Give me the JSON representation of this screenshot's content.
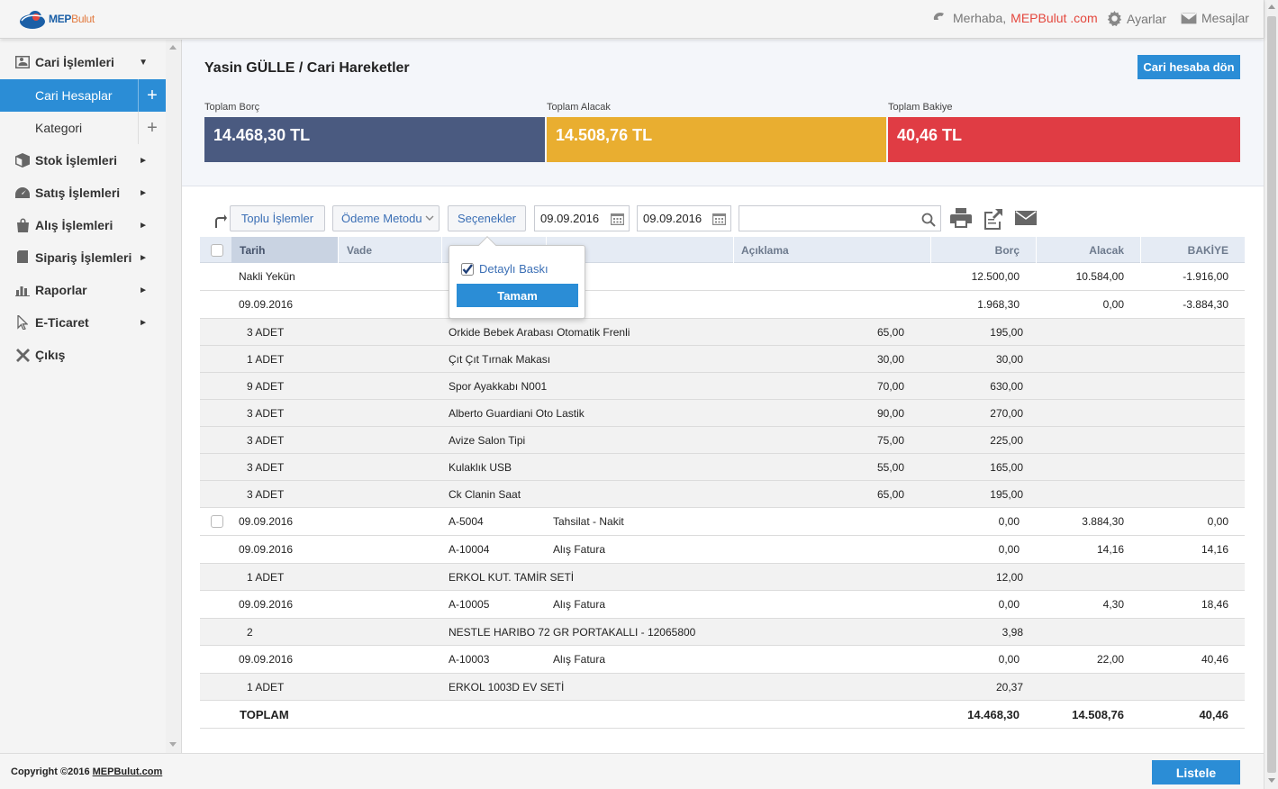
{
  "topbar": {
    "logo_text_a": "MEP",
    "logo_text_b": "Bulut",
    "greeting": "Merhaba,",
    "brand": "MEPBulut .com",
    "settings": "Ayarlar",
    "messages": "Mesajlar"
  },
  "sidebar": {
    "items": [
      {
        "label": "Cari İşlemleri",
        "icon": "id-card-icon"
      },
      {
        "label": "Cari Hesaplar"
      },
      {
        "label": "Kategori"
      },
      {
        "label": "Stok İşlemleri",
        "icon": "box-icon"
      },
      {
        "label": "Satış İşlemleri",
        "icon": "gauge-icon"
      },
      {
        "label": "Alış İşlemleri",
        "icon": "shopping-bag-icon"
      },
      {
        "label": "Sipariş İşlemleri",
        "icon": "clipboard-icon"
      },
      {
        "label": "Raporlar",
        "icon": "bar-chart-icon"
      },
      {
        "label": "E-Ticaret",
        "icon": "cursor-icon"
      },
      {
        "label": "Çıkış",
        "icon": "close-icon"
      }
    ]
  },
  "page": {
    "title": "Yasin GÜLLE / Cari Hareketler",
    "back_button": "Cari hesaba dön"
  },
  "summary": {
    "borc": {
      "label": "Toplam Borç",
      "value": "14.468,30 TL",
      "color": "#4a5a80"
    },
    "alacak": {
      "label": "Toplam Alacak",
      "value": "14.508,76 TL",
      "color": "#e9ae30"
    },
    "bakiye": {
      "label": "Toplam Bakiye",
      "value": "40,46 TL",
      "color": "#e03c44"
    }
  },
  "toolbar": {
    "bulk": "Toplu İşlemler",
    "payment": "Ödeme Metodu",
    "options": "Seçenekler",
    "date_from": "09.09.2016",
    "date_to": "09.09.2016",
    "search_value": ""
  },
  "popup": {
    "checkbox_label": "Detaylı Baskı",
    "checked": true,
    "ok": "Tamam"
  },
  "table": {
    "headers": {
      "tarih": "Tarih",
      "vade": "Vade",
      "aciklama": "Açıklama",
      "borc": "Borç",
      "alacak": "Alacak",
      "bakiye": "BAKİYE"
    },
    "rows": [
      {
        "kind": "main",
        "tarih": "Nakli Yekün",
        "belge": "",
        "tur": "",
        "borc": "12.500,00",
        "alacak": "10.584,00",
        "bakiye": "-1.916,00",
        "checkbox": false
      },
      {
        "kind": "main",
        "tarih": "09.09.2016",
        "belge": "",
        "tur": "atura",
        "borc": "1.968,30",
        "alacak": "0,00",
        "bakiye": "-3.884,30",
        "checkbox": false
      },
      {
        "kind": "detail",
        "qty": "3 ADET",
        "product": "Orkide Bebek Arabası Otomatik Frenli",
        "price": "65,00",
        "total": "195,00"
      },
      {
        "kind": "detail",
        "qty": "1 ADET",
        "product": "Çıt Çıt Tırnak Makası",
        "price": "30,00",
        "total": "30,00"
      },
      {
        "kind": "detail",
        "qty": "9 ADET",
        "product": "Spor Ayakkabı N001",
        "price": "70,00",
        "total": "630,00"
      },
      {
        "kind": "detail",
        "qty": "3 ADET",
        "product": "Alberto Guardiani Oto Lastik",
        "price": "90,00",
        "total": "270,00"
      },
      {
        "kind": "detail",
        "qty": "3 ADET",
        "product": "Avize Salon Tipi",
        "price": "75,00",
        "total": "225,00"
      },
      {
        "kind": "detail",
        "qty": "3 ADET",
        "product": "Kulaklık USB",
        "price": "55,00",
        "total": "165,00"
      },
      {
        "kind": "detail",
        "qty": "3 ADET",
        "product": "Ck Clanin Saat",
        "price": "65,00",
        "total": "195,00"
      },
      {
        "kind": "main",
        "tarih": "09.09.2016",
        "belge": "A-5004",
        "tur": "Tahsilat - Nakit",
        "borc": "0,00",
        "alacak": "3.884,30",
        "bakiye": "0,00",
        "checkbox": true
      },
      {
        "kind": "main",
        "tarih": "09.09.2016",
        "belge": "A-10004",
        "tur": "Alış Fatura",
        "borc": "0,00",
        "alacak": "14,16",
        "bakiye": "14,16",
        "checkbox": false
      },
      {
        "kind": "detail",
        "qty": "1 ADET",
        "product": "ERKOL KUT. TAMİR SETİ",
        "price": "",
        "total": "12,00"
      },
      {
        "kind": "main",
        "tarih": "09.09.2016",
        "belge": "A-10005",
        "tur": "Alış Fatura",
        "borc": "0,00",
        "alacak": "4,30",
        "bakiye": "18,46",
        "checkbox": false
      },
      {
        "kind": "detail",
        "qty": "2",
        "product": "NESTLE HARIBO 72 GR PORTAKALLI - 12065800",
        "price": "",
        "total": "3,98"
      },
      {
        "kind": "main",
        "tarih": "09.09.2016",
        "belge": "A-10003",
        "tur": "Alış Fatura",
        "borc": "0,00",
        "alacak": "22,00",
        "bakiye": "40,46",
        "checkbox": false
      },
      {
        "kind": "detail",
        "qty": "1 ADET",
        "product": "ERKOL 1003D EV SETİ",
        "price": "",
        "total": "20,37"
      }
    ],
    "total": {
      "label": "TOPLAM",
      "borc": "14.468,30",
      "alacak": "14.508,76",
      "bakiye": "40,46"
    }
  },
  "footer": {
    "copyright": "Copyright ©2016",
    "site": "MEPBulut.com",
    "list_button": "Listele"
  }
}
